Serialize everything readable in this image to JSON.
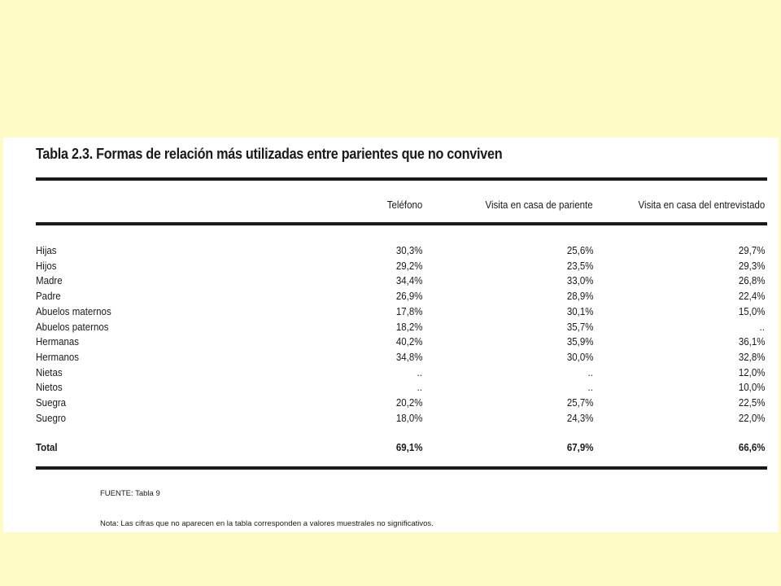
{
  "title": "Tabla 2.3. Formas de relación más utilizadas entre parientes que no conviven",
  "columns": [
    "Teléfono",
    "Visita en casa de pariente",
    "Visita en casa del entrevistado"
  ],
  "rows": [
    {
      "label": "Hijas",
      "values": [
        "30,3%",
        "25,6%",
        "29,7%"
      ]
    },
    {
      "label": "Hijos",
      "values": [
        "29,2%",
        "23,5%",
        "29,3%"
      ]
    },
    {
      "label": "Madre",
      "values": [
        "34,4%",
        "33,0%",
        "26,8%"
      ]
    },
    {
      "label": "Padre",
      "values": [
        "26,9%",
        "28,9%",
        "22,4%"
      ]
    },
    {
      "label": "Abuelos maternos",
      "values": [
        "17,8%",
        "30,1%",
        "15,0%"
      ]
    },
    {
      "label": "Abuelos paternos",
      "values": [
        "18,2%",
        "35,7%",
        ".."
      ]
    },
    {
      "label": "Hermanas",
      "values": [
        "40,2%",
        "35,9%",
        "36,1%"
      ]
    },
    {
      "label": "Hermanos",
      "values": [
        "34,8%",
        "30,0%",
        "32,8%"
      ]
    },
    {
      "label": "Nietas",
      "values": [
        "..",
        "..",
        "12,0%"
      ]
    },
    {
      "label": "Nietos",
      "values": [
        "..",
        "..",
        "10,0%"
      ]
    },
    {
      "label": "Suegra",
      "values": [
        "20,2%",
        "25,7%",
        "22,5%"
      ]
    },
    {
      "label": "Suegro",
      "values": [
        "18,0%",
        "24,3%",
        "22,0%"
      ]
    }
  ],
  "total": {
    "label": "Total",
    "values": [
      "69,1%",
      "67,9%",
      "66,6%"
    ]
  },
  "source": "FUENTE:   Tabla 9",
  "note": "Nota: Las cifras que no aparecen en la tabla corresponden a valores muestrales no significativos."
}
